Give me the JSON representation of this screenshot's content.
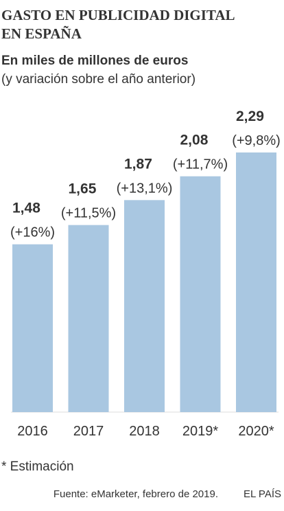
{
  "chart_data": {
    "type": "bar",
    "title_lines": [
      "GASTO EN PUBLICIDAD DIGITAL",
      "EN ESPAÑA"
    ],
    "subtitle": "En miles de millones de euros",
    "subtitle2": "(y variación sobre el año anterior)",
    "categories": [
      "2016",
      "2017",
      "2018",
      "2019*",
      "2020*"
    ],
    "values": [
      1.48,
      1.65,
      1.87,
      2.08,
      2.29
    ],
    "value_labels": [
      "1,48",
      "1,65",
      "1,87",
      "2,08",
      "2,29"
    ],
    "change_labels": [
      "(+16%)",
      "(+11,5%)",
      "(+13,1%)",
      "(+11,7%)",
      "(+9,8%)"
    ],
    "color": "#a9c7e1",
    "footnote": "* Estimación",
    "source": "Fuente: eMarketer, febrero de 2019.",
    "brand": "EL PAÍS"
  }
}
